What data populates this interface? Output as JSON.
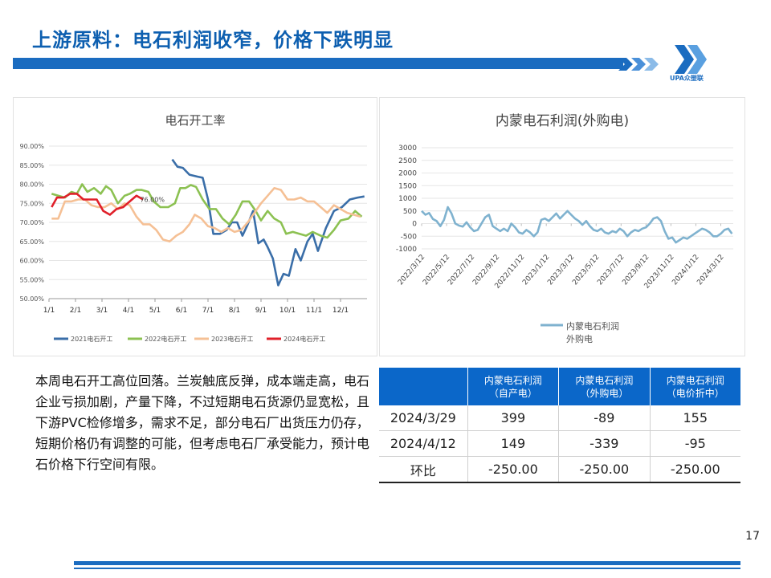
{
  "page": {
    "title": "上游原料：电石利润收窄，价格下跌明显",
    "page_number": "17",
    "logo_text": "UPA众塑联",
    "brand_color": "#1b6cc0"
  },
  "text_block": "本周电石开工高位回落。兰炭触底反弹，成本端走高，电石企业亏损加剧，产量下降，不过短期电石货源仍显宽松，且下游PVC检修增多，需求不足，部分电石厂出货压力仍存，短期价格仍有调整的可能，但考虑电石厂承受能力，预计电石价格下行空间有限。",
  "table": {
    "headers": [
      "",
      "内蒙电石利润\n（自产电）",
      "内蒙电石利润\n（外购电）",
      "内蒙电石利润\n（电价折中）"
    ],
    "rows": [
      [
        "2024/3/29",
        "399",
        "-89",
        "155"
      ],
      [
        "2024/4/12",
        "149",
        "-339",
        "-95"
      ],
      [
        "环比",
        "-250.00",
        "-250.00",
        "-250.00"
      ]
    ]
  },
  "chart_data": [
    {
      "type": "line",
      "title": "电石开工率",
      "y_ticks": [
        "90.00%",
        "85.00%",
        "80.00%",
        "75.00%",
        "70.00%",
        "65.00%",
        "60.00%",
        "55.00%",
        "50.00%"
      ],
      "x_ticks": [
        "1/1",
        "2/1",
        "3/1",
        "4/1",
        "5/1",
        "6/1",
        "7/1",
        "8/1",
        "9/1",
        "10/1",
        "11/1",
        "12/1"
      ],
      "ylim": [
        50,
        90
      ],
      "x_range": [
        0,
        12
      ],
      "annotation": "76.00%",
      "annotation_x": 3.9,
      "annotation_y": 76.0,
      "series": [
        {
          "name": "2021电石开工",
          "color": "#3a6ea8",
          "points": [
            [
              4.65,
              86.5
            ],
            [
              4.85,
              84.6
            ],
            [
              5.05,
              84.3
            ],
            [
              5.3,
              82.5
            ],
            [
              5.6,
              82
            ],
            [
              5.8,
              81.7
            ],
            [
              6.0,
              76
            ],
            [
              6.2,
              67
            ],
            [
              6.45,
              67
            ],
            [
              6.7,
              68
            ],
            [
              6.9,
              70
            ],
            [
              7.1,
              70
            ],
            [
              7.3,
              66.5
            ],
            [
              7.5,
              69.5
            ],
            [
              7.7,
              73
            ],
            [
              7.9,
              64.5
            ],
            [
              8.1,
              65.5
            ],
            [
              8.25,
              63.5
            ],
            [
              8.45,
              60.5
            ],
            [
              8.65,
              53.5
            ],
            [
              8.85,
              56.5
            ],
            [
              9.05,
              56
            ],
            [
              9.3,
              63
            ],
            [
              9.5,
              60
            ],
            [
              9.75,
              65
            ],
            [
              9.95,
              67
            ],
            [
              10.15,
              62.5
            ],
            [
              10.45,
              68.5
            ],
            [
              10.75,
              73
            ],
            [
              11.05,
              74
            ],
            [
              11.35,
              76
            ],
            [
              11.65,
              76.5
            ],
            [
              11.9,
              76.8
            ]
          ]
        },
        {
          "name": "2022电石开工",
          "color": "#8cc152",
          "points": [
            [
              0.1,
              77.5
            ],
            [
              0.35,
              77
            ],
            [
              0.6,
              76.5
            ],
            [
              0.85,
              78
            ],
            [
              1.05,
              77.5
            ],
            [
              1.25,
              80
            ],
            [
              1.45,
              78
            ],
            [
              1.7,
              79
            ],
            [
              1.95,
              77.5
            ],
            [
              2.15,
              79.5
            ],
            [
              2.35,
              78.5
            ],
            [
              2.6,
              75
            ],
            [
              2.85,
              77
            ],
            [
              3.05,
              77.5
            ],
            [
              3.3,
              78.5
            ],
            [
              3.5,
              78.5
            ],
            [
              3.75,
              78
            ],
            [
              3.95,
              75.5
            ],
            [
              4.2,
              74
            ],
            [
              4.5,
              74
            ],
            [
              4.75,
              75
            ],
            [
              4.95,
              79
            ],
            [
              5.15,
              79
            ],
            [
              5.35,
              79.8
            ],
            [
              5.55,
              79.3
            ],
            [
              5.8,
              76
            ],
            [
              6.05,
              73.5
            ],
            [
              6.3,
              73.5
            ],
            [
              6.55,
              71
            ],
            [
              6.8,
              69.5
            ],
            [
              7.05,
              72
            ],
            [
              7.3,
              75.5
            ],
            [
              7.55,
              75.5
            ],
            [
              7.8,
              73
            ],
            [
              8.0,
              70.5
            ],
            [
              8.25,
              73
            ],
            [
              8.5,
              71
            ],
            [
              8.75,
              70
            ],
            [
              8.95,
              67
            ],
            [
              9.2,
              67.5
            ],
            [
              9.45,
              67
            ],
            [
              9.7,
              66.5
            ],
            [
              9.95,
              67.5
            ],
            [
              10.25,
              66.5
            ],
            [
              10.5,
              66
            ],
            [
              10.75,
              68
            ],
            [
              11.0,
              70.5
            ],
            [
              11.3,
              71
            ],
            [
              11.55,
              73
            ],
            [
              11.8,
              71.5
            ]
          ]
        },
        {
          "name": "2023电石开工",
          "color": "#f5c095",
          "points": [
            [
              0.1,
              71
            ],
            [
              0.35,
              71
            ],
            [
              0.6,
              75.5
            ],
            [
              0.85,
              75.5
            ],
            [
              1.1,
              76
            ],
            [
              1.35,
              76
            ],
            [
              1.6,
              74.5
            ],
            [
              1.85,
              74
            ],
            [
              2.1,
              74
            ],
            [
              2.35,
              75
            ],
            [
              2.6,
              73.5
            ],
            [
              2.85,
              75
            ],
            [
              3.05,
              74.5
            ],
            [
              3.3,
              71.5
            ],
            [
              3.55,
              69.5
            ],
            [
              3.8,
              69.5
            ],
            [
              4.05,
              68
            ],
            [
              4.3,
              65.5
            ],
            [
              4.55,
              65
            ],
            [
              4.8,
              66.5
            ],
            [
              5.05,
              67.5
            ],
            [
              5.3,
              69.5
            ],
            [
              5.5,
              72
            ],
            [
              5.75,
              71
            ],
            [
              6.0,
              69
            ],
            [
              6.25,
              68.5
            ],
            [
              6.5,
              67.5
            ],
            [
              6.75,
              68.5
            ],
            [
              7.0,
              67.5
            ],
            [
              7.25,
              68
            ],
            [
              7.5,
              70
            ],
            [
              7.75,
              72.5
            ],
            [
              8.0,
              75
            ],
            [
              8.25,
              77
            ],
            [
              8.5,
              79
            ],
            [
              8.75,
              78.5
            ],
            [
              9.0,
              76
            ],
            [
              9.25,
              76
            ],
            [
              9.5,
              76.5
            ],
            [
              9.75,
              75.5
            ],
            [
              10.0,
              75.5
            ],
            [
              10.25,
              74
            ],
            [
              10.5,
              72.5
            ],
            [
              10.75,
              74.5
            ],
            [
              11.0,
              73.5
            ],
            [
              11.25,
              72.5
            ],
            [
              11.5,
              72
            ],
            [
              11.75,
              71.5
            ]
          ]
        },
        {
          "name": "2024电石开工",
          "color": "#e0202a",
          "points": [
            [
              0.1,
              74
            ],
            [
              0.3,
              76.5
            ],
            [
              0.55,
              76.5
            ],
            [
              0.8,
              77.5
            ],
            [
              1.05,
              77.5
            ],
            [
              1.3,
              76
            ],
            [
              1.55,
              76
            ],
            [
              1.8,
              76
            ],
            [
              2.05,
              73
            ],
            [
              2.3,
              72
            ],
            [
              2.55,
              73.5
            ],
            [
              2.8,
              74
            ],
            [
              3.05,
              75.5
            ],
            [
              3.3,
              77
            ],
            [
              3.55,
              76
            ]
          ]
        }
      ],
      "legend_position": "bottom"
    },
    {
      "type": "line",
      "title": "内蒙电石利润(外购电)",
      "y_ticks": [
        "3000",
        "2500",
        "2000",
        "1500",
        "1000",
        "500",
        "0",
        "-500",
        "-1000"
      ],
      "ylim": [
        -1000,
        3000
      ],
      "x_ticks": [
        "2022/3/12",
        "2022/5/12",
        "2022/7/12",
        "2022/9/12",
        "2022/11/12",
        "2023/1/12",
        "2023/3/12",
        "2023/5/12",
        "2023/7/12",
        "2023/9/12",
        "2023/11/12",
        "2024/1/12",
        "2024/3/12"
      ],
      "x_range": [
        0,
        25
      ],
      "series": [
        {
          "name": "内蒙电石利润外购电",
          "color": "#7fb2cf",
          "points": [
            [
              0,
              500
            ],
            [
              0.3,
              350
            ],
            [
              0.6,
              420
            ],
            [
              0.9,
              180
            ],
            [
              1.2,
              100
            ],
            [
              1.5,
              -100
            ],
            [
              1.8,
              150
            ],
            [
              2.1,
              650
            ],
            [
              2.4,
              400
            ],
            [
              2.7,
              0
            ],
            [
              3.0,
              -80
            ],
            [
              3.3,
              -120
            ],
            [
              3.6,
              50
            ],
            [
              3.9,
              -150
            ],
            [
              4.2,
              -300
            ],
            [
              4.5,
              -250
            ],
            [
              4.8,
              0
            ],
            [
              5.1,
              250
            ],
            [
              5.4,
              350
            ],
            [
              5.7,
              -100
            ],
            [
              6.0,
              -200
            ],
            [
              6.3,
              -300
            ],
            [
              6.6,
              -200
            ],
            [
              6.9,
              -300
            ],
            [
              7.2,
              0
            ],
            [
              7.5,
              -150
            ],
            [
              7.8,
              -350
            ],
            [
              8.1,
              -400
            ],
            [
              8.4,
              -250
            ],
            [
              8.7,
              -350
            ],
            [
              9.0,
              -500
            ],
            [
              9.3,
              -350
            ],
            [
              9.6,
              150
            ],
            [
              9.9,
              200
            ],
            [
              10.2,
              100
            ],
            [
              10.5,
              250
            ],
            [
              10.8,
              400
            ],
            [
              11.1,
              200
            ],
            [
              11.4,
              350
            ],
            [
              11.7,
              500
            ],
            [
              12.0,
              350
            ],
            [
              12.3,
              200
            ],
            [
              12.6,
              100
            ],
            [
              12.9,
              -50
            ],
            [
              13.2,
              100
            ],
            [
              13.5,
              -100
            ],
            [
              13.8,
              -250
            ],
            [
              14.1,
              -300
            ],
            [
              14.4,
              -200
            ],
            [
              14.7,
              -350
            ],
            [
              15.0,
              -400
            ],
            [
              15.3,
              -300
            ],
            [
              15.6,
              -350
            ],
            [
              15.9,
              -200
            ],
            [
              16.2,
              -300
            ],
            [
              16.5,
              -500
            ],
            [
              16.8,
              -350
            ],
            [
              17.1,
              -250
            ],
            [
              17.4,
              -300
            ],
            [
              17.7,
              -200
            ],
            [
              18.0,
              -150
            ],
            [
              18.3,
              0
            ],
            [
              18.6,
              200
            ],
            [
              18.9,
              250
            ],
            [
              19.2,
              100
            ],
            [
              19.5,
              -300
            ],
            [
              19.8,
              -600
            ],
            [
              20.1,
              -550
            ],
            [
              20.4,
              -750
            ],
            [
              20.7,
              -650
            ],
            [
              21.0,
              -550
            ],
            [
              21.3,
              -600
            ],
            [
              21.6,
              -500
            ],
            [
              21.9,
              -400
            ],
            [
              22.2,
              -300
            ],
            [
              22.5,
              -200
            ],
            [
              22.8,
              -250
            ],
            [
              23.1,
              -350
            ],
            [
              23.4,
              -500
            ],
            [
              23.7,
              -500
            ],
            [
              24.0,
              -400
            ],
            [
              24.3,
              -250
            ],
            [
              24.6,
              -200
            ],
            [
              24.9,
              -400
            ]
          ]
        }
      ],
      "legend_label": "内蒙电石利润\n外购电",
      "legend_position": "bottom-left"
    }
  ]
}
